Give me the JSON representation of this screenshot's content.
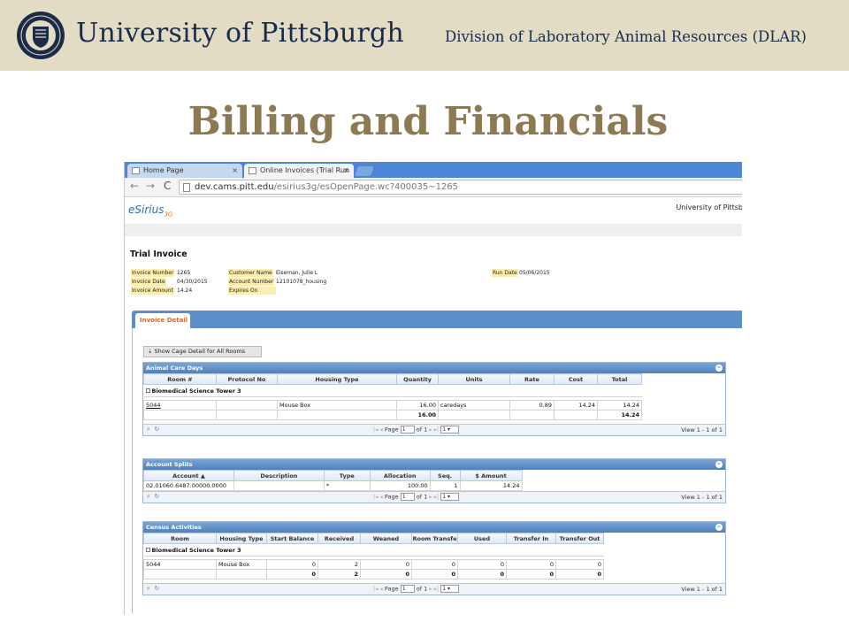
{
  "slide": {
    "university": "University of Pittsburgh",
    "division": "Division of Laboratory Animal Resources (DLAR)",
    "title": "Billing and Financials"
  },
  "browser": {
    "tabs": [
      {
        "label": "Home Page",
        "close": "×"
      },
      {
        "label": "Online Invoices (Trial Run",
        "close": "×"
      }
    ],
    "nav": {
      "back": "←",
      "forward": "→",
      "reload": "C"
    },
    "url_host": "dev.cams.pitt.edu",
    "url_path": "/esirius3g/esOpenPage.wc?400035~1265"
  },
  "app": {
    "logo_main": "eSirius",
    "logo_sub": "3G",
    "org": "University of Pittsb"
  },
  "invoice": {
    "title": "Trial Invoice",
    "fields": {
      "invoice_number_label": "Invoice Number",
      "invoice_number": "1265",
      "invoice_date_label": "Invoice Date",
      "invoice_date": "04/30/2015",
      "invoice_amount_label": "Invoice Amount",
      "invoice_amount": "14.24",
      "customer_name_label": "Customer Name",
      "customer_name": "Eiseman, Julie L",
      "account_number_label": "Account Number",
      "account_number": "12101078_housing",
      "expires_on_label": "Expires On",
      "run_date_label": "Run Date",
      "run_date": "05/06/2015"
    },
    "detail_tab": "Invoice Detail",
    "cage_button": "Show Cage Detail for All Rooms"
  },
  "animal_care_days": {
    "title": "Animal Care Days",
    "columns": [
      "Room #",
      "Protocol No",
      "Housing Type",
      "Quantity",
      "Units",
      "Rate",
      "Cost",
      "Total"
    ],
    "group": "Biomedical Science Tower 3",
    "row": {
      "room": "5044",
      "protocol": "",
      "housing": "Mouse Box",
      "quantity": "16.00",
      "units": "caredays",
      "rate": "0.89",
      "cost": "14.24",
      "total": "14.24"
    },
    "subtotal": {
      "quantity": "16.00",
      "total": "14.24"
    },
    "pager": {
      "page_label": "Page",
      "page": "1",
      "of": "of 1",
      "rows": "1",
      "view": "View 1 - 1 of 1"
    }
  },
  "account_splits": {
    "title": "Account Splits",
    "columns": [
      "Account",
      "Description",
      "Type",
      "Allocation",
      "Seq.",
      "$ Amount"
    ],
    "sort_indicator": "▲",
    "row": {
      "account": "02.01060.6487.00000.0000",
      "description": "",
      "type": "*",
      "allocation": "100.00",
      "seq": "1",
      "amount": "14.24"
    },
    "pager": {
      "page_label": "Page",
      "page": "1",
      "of": "of 1",
      "rows": "1",
      "view": "View 1 - 1 of 1"
    }
  },
  "census_activities": {
    "title": "Census Activities",
    "columns": [
      "Room",
      "Housing Type",
      "Start Balance",
      "Received",
      "Weaned",
      "Room Transfe",
      "Used",
      "Transfer In",
      "Transfer Out"
    ],
    "group": "Biomedical Science Tower 3",
    "row": {
      "room": "5044",
      "housing": "Mouse Box",
      "start": "0",
      "received": "2",
      "weaned": "0",
      "room_transfer": "0",
      "used": "0",
      "transfer_in": "0",
      "transfer_out": "0"
    },
    "subtotal": {
      "start": "0",
      "received": "2",
      "weaned": "0",
      "room_transfer": "0",
      "used": "0",
      "transfer_in": "0",
      "transfer_out": "0"
    },
    "pager": {
      "page_label": "Page",
      "page": "1",
      "of": "of 1",
      "rows": "1",
      "view": "View 1 - 1 of 1"
    }
  }
}
